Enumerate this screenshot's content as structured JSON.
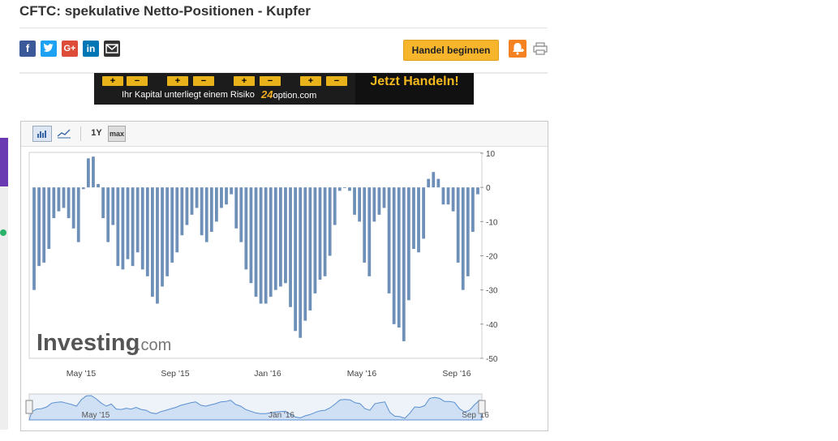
{
  "page": {
    "title": "CFTC: spekulative Netto-Positionen - Kupfer",
    "trade_button": "Handel beginnen",
    "share_icons": [
      "facebook-icon",
      "twitter-icon",
      "google-plus-icon",
      "linkedin-icon",
      "email-icon"
    ]
  },
  "banner": {
    "risk_text": "Ihr Kapital unterliegt einem Risiko",
    "brand_prefix": "24",
    "brand_suffix": "option.com",
    "cta": "Jetzt Handeln!",
    "plus": "+",
    "minus": "−"
  },
  "toolbar": {
    "range_1y": "1Y",
    "range_max": "max"
  },
  "watermark": {
    "brand": "Investing",
    "suffix": ".com"
  },
  "colors": {
    "bar": "#6d8fb8",
    "trade_button": "#f7b52c",
    "navigator_fill": "#cfe0f5",
    "navigator_line": "#5a8fd0"
  },
  "chart_data": {
    "type": "bar",
    "x_tick_labels": [
      "May '15",
      "Sep '15",
      "Jan '16",
      "May '16",
      "Sep '16"
    ],
    "y_tick_labels": [
      "10",
      "0",
      "-10",
      "-20",
      "-30",
      "-40",
      "-50"
    ],
    "ylim": [
      -50,
      10
    ],
    "grid": false,
    "values": [
      -30,
      -23,
      -22,
      -18,
      -9,
      -7,
      -6,
      -9,
      -12,
      -16,
      -0.5,
      8.5,
      9,
      1,
      -9,
      -16,
      -11,
      -23,
      -24,
      -21,
      -23,
      -19,
      -24,
      -26,
      -32,
      -34,
      -29,
      -26,
      -22,
      -19,
      -14,
      -11,
      -8,
      -6,
      -14,
      -16,
      -13,
      -10,
      -6,
      -5,
      -2,
      -12,
      -16,
      -24,
      -28,
      -32,
      -34,
      -34,
      -32,
      -30,
      -29,
      -28,
      -35,
      -42,
      -44,
      -39,
      -36,
      -31,
      -27,
      -26,
      -20,
      -11,
      -1,
      0,
      -1,
      -8,
      -10,
      -22,
      -26,
      -10,
      -8,
      -6,
      -31,
      -40,
      -41,
      -45,
      -33,
      -18,
      -19,
      -15,
      2.5,
      4.5,
      2.5,
      -5,
      -5,
      -7,
      -22,
      -30,
      -26,
      -13,
      -2
    ],
    "navigator_labels": [
      "May '15",
      "Jan '16",
      "Sep '16"
    ]
  }
}
